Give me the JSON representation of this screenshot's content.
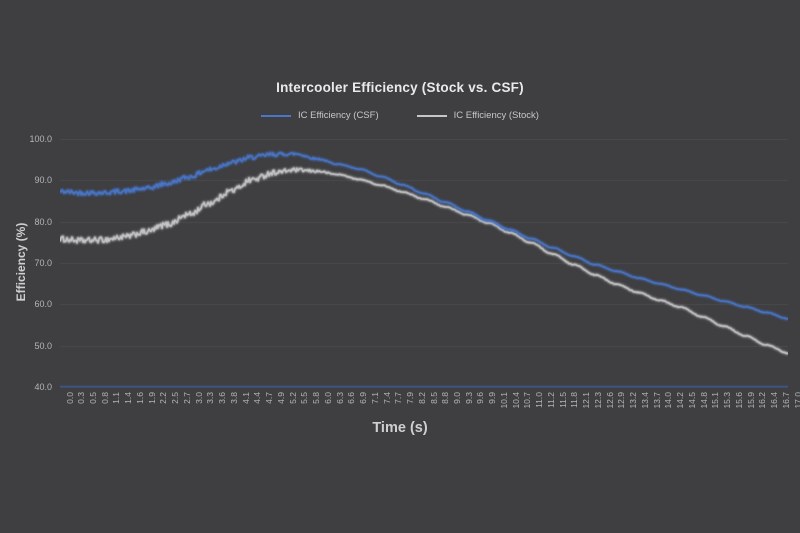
{
  "background": "#3f3f41",
  "colors": {
    "csf_line": "#4a76c8",
    "stock_line": "#c6c6c8",
    "axis_line": "#3a5a94",
    "gridline": "rgba(255,255,255,0.06)",
    "title_text": "#eaeaec",
    "tick_text": "#b5b5b7"
  },
  "chart_data": {
    "type": "line",
    "title": "Intercooler Efficiency (Stock vs. CSF)",
    "xlabel": "Time (s)",
    "ylabel": "Efficiency (%)",
    "ylim": [
      40,
      100
    ],
    "xlim": [
      0,
      17
    ],
    "grid": "horizontal-faint",
    "legend_position": "top-center",
    "y_tick_labels": [
      "100.0",
      "90.0",
      "80.0",
      "70.0",
      "60.0",
      "50.0",
      "40.0"
    ],
    "x_tick_labels": [
      "0.0",
      "0.3",
      "0.5",
      "0.8",
      "1.1",
      "1.4",
      "1.6",
      "1.9",
      "2.2",
      "2.5",
      "2.7",
      "3.0",
      "3.3",
      "3.6",
      "3.8",
      "4.1",
      "4.4",
      "4.7",
      "4.9",
      "5.2",
      "5.5",
      "5.8",
      "6.0",
      "6.3",
      "6.6",
      "6.9",
      "7.1",
      "7.4",
      "7.7",
      "7.9",
      "8.2",
      "8.5",
      "8.8",
      "9.0",
      "9.3",
      "9.6",
      "9.9",
      "10.1",
      "10.4",
      "10.7",
      "11.0",
      "11.2",
      "11.5",
      "11.8",
      "12.1",
      "12.3",
      "12.6",
      "12.9",
      "13.2",
      "13.4",
      "13.7",
      "14.0",
      "14.2",
      "14.5",
      "14.8",
      "15.1",
      "15.3",
      "15.6",
      "15.9",
      "16.2",
      "16.4",
      "16.7",
      "17.0"
    ],
    "x": [
      0,
      0.5,
      1,
      1.5,
      2,
      2.5,
      3,
      3.5,
      4,
      4.5,
      5,
      5.5,
      6,
      6.5,
      7,
      7.5,
      8,
      8.5,
      9,
      9.5,
      10,
      10.5,
      11,
      11.5,
      12,
      12.5,
      13,
      13.5,
      14,
      14.5,
      15,
      15.5,
      16,
      16.5,
      17
    ],
    "series": [
      {
        "name": "IC Efficiency (CSF)",
        "color": "#4a76c8",
        "values": [
          87.3,
          87.0,
          87.0,
          87.4,
          88.0,
          89.2,
          90.8,
          92.6,
          94.3,
          95.6,
          96.3,
          96.4,
          95.2,
          93.9,
          92.7,
          90.9,
          88.9,
          86.8,
          84.7,
          82.5,
          80.3,
          78.1,
          75.9,
          73.7,
          71.6,
          69.6,
          68.0,
          66.4,
          65.0,
          63.6,
          62.2,
          60.8,
          59.4,
          58.0,
          56.5
        ]
      },
      {
        "name": "IC Efficiency (Stock)",
        "color": "#c6c6c8",
        "values": [
          75.8,
          75.4,
          75.6,
          76.3,
          77.5,
          79.3,
          81.7,
          84.5,
          87.5,
          90.2,
          91.9,
          92.5,
          92.2,
          91.4,
          90.2,
          88.8,
          87.2,
          85.5,
          83.6,
          81.7,
          79.7,
          77.4,
          74.9,
          72.2,
          69.6,
          67.1,
          64.9,
          62.9,
          61.0,
          59.3,
          57.0,
          54.7,
          52.4,
          50.2,
          48.2
        ]
      }
    ],
    "noise": {
      "amplitude_early": 0.55,
      "fade_start_t": 4.8,
      "fade_end_t": 6.5,
      "amplitude_late": 0.07
    }
  }
}
